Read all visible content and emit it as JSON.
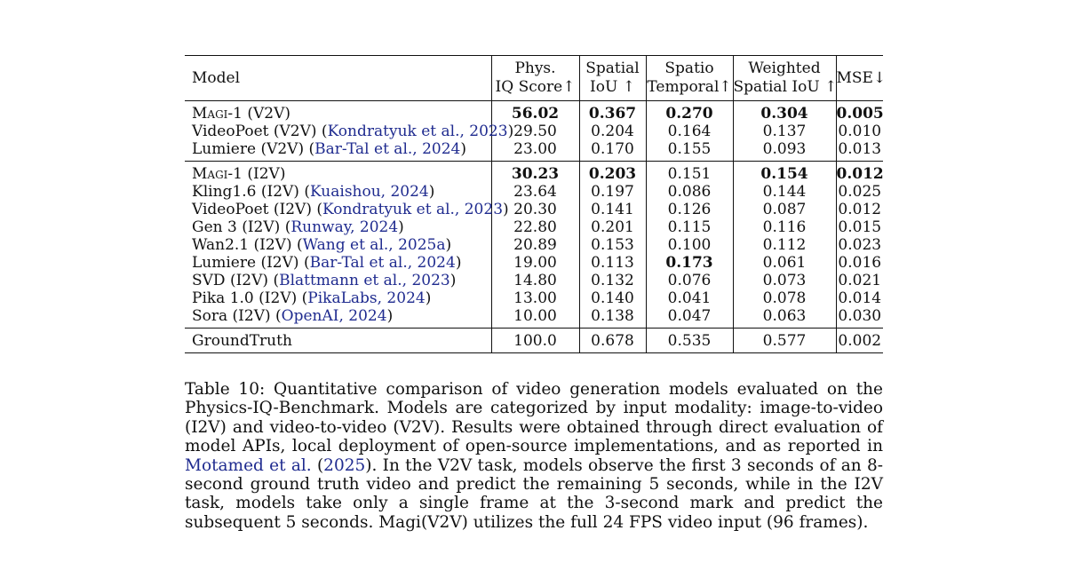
{
  "table": {
    "headers": [
      {
        "lines": [
          "Model"
        ]
      },
      {
        "lines": [
          "Phys.",
          "IQ Score↑"
        ]
      },
      {
        "lines": [
          "Spatial",
          "IoU ↑"
        ]
      },
      {
        "lines": [
          "Spatio",
          "Temporal↑"
        ]
      },
      {
        "lines": [
          "Weighted",
          "Spatial IoU ↑"
        ]
      },
      {
        "lines": [
          "MSE↓"
        ]
      }
    ],
    "groups": [
      {
        "rows": [
          {
            "name": "Magi-1",
            "suffix": " (V2V)",
            "smallcaps": true,
            "cite": "",
            "pre": "",
            "post": "",
            "values": [
              "56.02",
              "0.367",
              "0.270",
              "0.304",
              "0.005"
            ],
            "bold": [
              true,
              true,
              true,
              true,
              true
            ]
          },
          {
            "name": "VideoPoet (V2V) ",
            "suffix": "",
            "smallcaps": false,
            "pre": "(",
            "cite": "Kondratyuk et al., 2023",
            "post": ")",
            "values": [
              "29.50",
              "0.204",
              "0.164",
              "0.137",
              "0.010"
            ],
            "bold": [
              false,
              false,
              false,
              false,
              false
            ]
          },
          {
            "name": "Lumiere (V2V) ",
            "suffix": "",
            "smallcaps": false,
            "pre": "(",
            "cite": "Bar-Tal et al., 2024",
            "post": ")",
            "values": [
              "23.00",
              "0.170",
              "0.155",
              "0.093",
              "0.013"
            ],
            "bold": [
              false,
              false,
              false,
              false,
              false
            ]
          }
        ]
      },
      {
        "rows": [
          {
            "name": "Magi-1",
            "suffix": " (I2V)",
            "smallcaps": true,
            "cite": "",
            "pre": "",
            "post": "",
            "values": [
              "30.23",
              "0.203",
              "0.151",
              "0.154",
              "0.012"
            ],
            "bold": [
              true,
              true,
              false,
              true,
              true
            ]
          },
          {
            "name": "Kling1.6 (I2V) ",
            "suffix": "",
            "smallcaps": false,
            "pre": "(",
            "cite": "Kuaishou, 2024",
            "post": ")",
            "values": [
              "23.64",
              "0.197",
              "0.086",
              "0.144",
              "0.025"
            ],
            "bold": [
              false,
              false,
              false,
              false,
              false
            ]
          },
          {
            "name": "VideoPoet (I2V) ",
            "suffix": "",
            "smallcaps": false,
            "pre": "(",
            "cite": "Kondratyuk et al., 2023",
            "post": ")",
            "values": [
              "20.30",
              "0.141",
              "0.126",
              "0.087",
              "0.012"
            ],
            "bold": [
              false,
              false,
              false,
              false,
              false
            ]
          },
          {
            "name": "Gen 3 (I2V) ",
            "suffix": "",
            "smallcaps": false,
            "pre": "(",
            "cite": "Runway, 2024",
            "post": ")",
            "values": [
              "22.80",
              "0.201",
              "0.115",
              "0.116",
              "0.015"
            ],
            "bold": [
              false,
              false,
              false,
              false,
              false
            ]
          },
          {
            "name": "Wan2.1 (I2V) ",
            "suffix": "",
            "smallcaps": false,
            "pre": "(",
            "cite": "Wang et al., 2025a",
            "post": ")",
            "values": [
              "20.89",
              "0.153",
              "0.100",
              "0.112",
              "0.023"
            ],
            "bold": [
              false,
              false,
              false,
              false,
              false
            ]
          },
          {
            "name": "Lumiere (I2V) ",
            "suffix": "",
            "smallcaps": false,
            "pre": "(",
            "cite": "Bar-Tal et al., 2024",
            "post": ")",
            "values": [
              "19.00",
              "0.113",
              "0.173",
              "0.061",
              "0.016"
            ],
            "bold": [
              false,
              false,
              true,
              false,
              false
            ]
          },
          {
            "name": "SVD (I2V) ",
            "suffix": "",
            "smallcaps": false,
            "pre": "(",
            "cite": "Blattmann et al., 2023",
            "post": ")",
            "values": [
              "14.80",
              "0.132",
              "0.076",
              "0.073",
              "0.021"
            ],
            "bold": [
              false,
              false,
              false,
              false,
              false
            ]
          },
          {
            "name": "Pika 1.0 (I2V) ",
            "suffix": "",
            "smallcaps": false,
            "pre": "(",
            "cite": "PikaLabs, 2024",
            "post": ")",
            "values": [
              "13.00",
              "0.140",
              "0.041",
              "0.078",
              "0.014"
            ],
            "bold": [
              false,
              false,
              false,
              false,
              false
            ]
          },
          {
            "name": "Sora (I2V) ",
            "suffix": "",
            "smallcaps": false,
            "pre": "(",
            "cite": "OpenAI, 2024",
            "post": ")",
            "values": [
              "10.00",
              "0.138",
              "0.047",
              "0.063",
              "0.030"
            ],
            "bold": [
              false,
              false,
              false,
              false,
              false
            ]
          }
        ]
      },
      {
        "rows": [
          {
            "name": "GroundTruth",
            "suffix": "",
            "smallcaps": false,
            "pre": "",
            "cite": "",
            "post": "",
            "values": [
              "100.0",
              "0.678",
              "0.535",
              "0.577",
              "0.002"
            ],
            "bold": [
              false,
              false,
              false,
              false,
              false
            ]
          }
        ]
      }
    ]
  },
  "caption": {
    "part1": "Table 10: Quantitative comparison of video generation models evaluated on the Physics-IQ-Benchmark. Models are categorized by input modality: image-to-video (I2V) and video-to-video (V2V). Results were obtained through direct evaluation of model APIs, local deployment of open-source implementations, and as reported in ",
    "link_author": "Motamed et al.",
    "link_mid": " (",
    "link_year": "2025",
    "part2": "). In the V2V task, models observe the first 3 seconds of an 8-second ground truth video and predict the remaining 5 seconds, while in the I2V task, models take only a single frame at the 3-second mark and predict the subsequent 5 seconds. Magi(V2V) utilizes the full 24 FPS video input (96 frames)."
  }
}
